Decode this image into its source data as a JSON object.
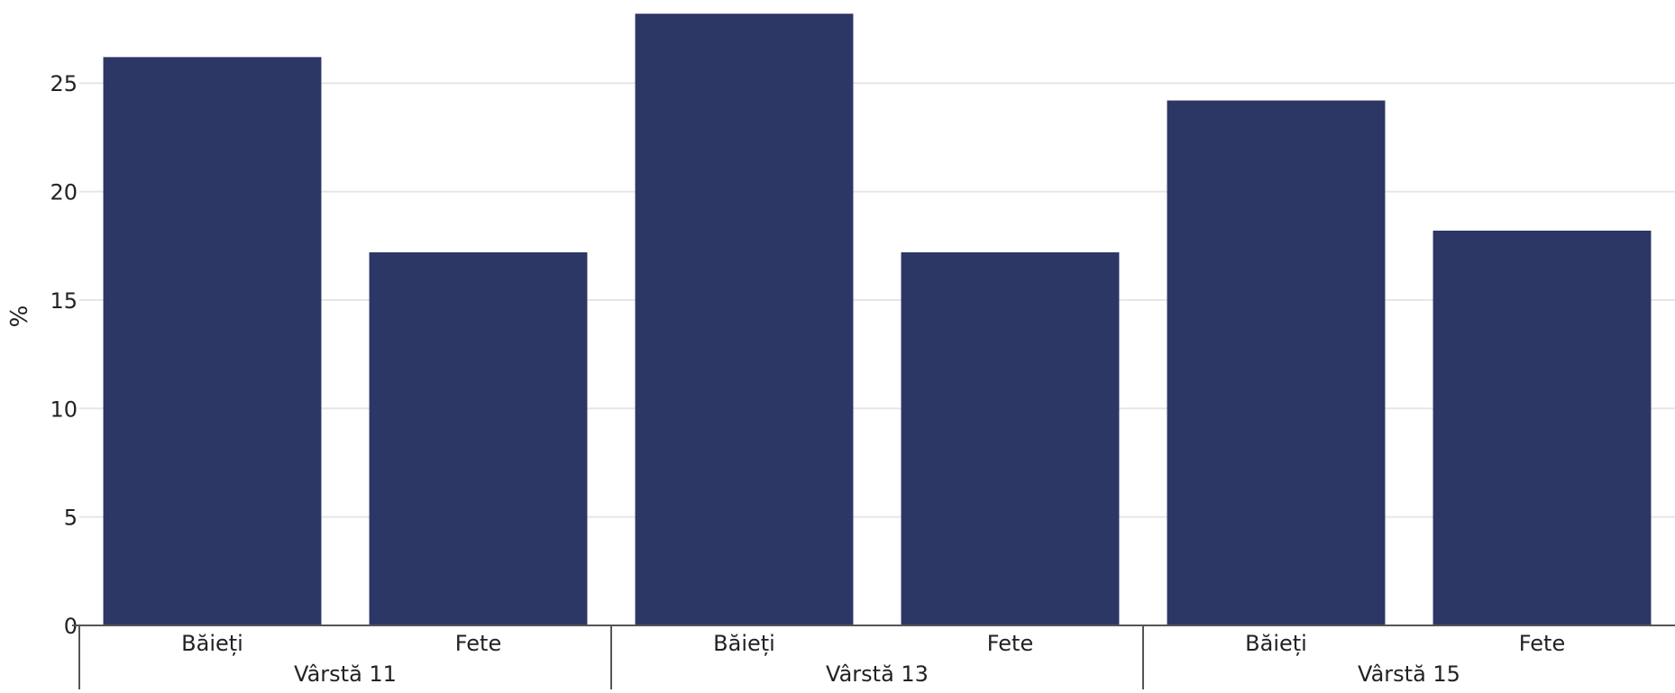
{
  "chart_data": {
    "type": "bar",
    "ylabel": "%",
    "ylim": [
      0,
      28.5
    ],
    "yticks": [
      0,
      5,
      10,
      15,
      20,
      25
    ],
    "grid": true,
    "group_labels": [
      "Vârstă 11",
      "Vârstă 13",
      "Vârstă 15"
    ],
    "categories": [
      "Băieți",
      "Fete",
      "Băieți",
      "Fete",
      "Băieți",
      "Fete"
    ],
    "values": [
      26.2,
      17.2,
      28.2,
      17.2,
      24.2,
      18.2
    ],
    "colors": {
      "bar": "#2c3765",
      "grid": "#e6e6e6",
      "axis": "#555555",
      "text": "#222222"
    }
  }
}
